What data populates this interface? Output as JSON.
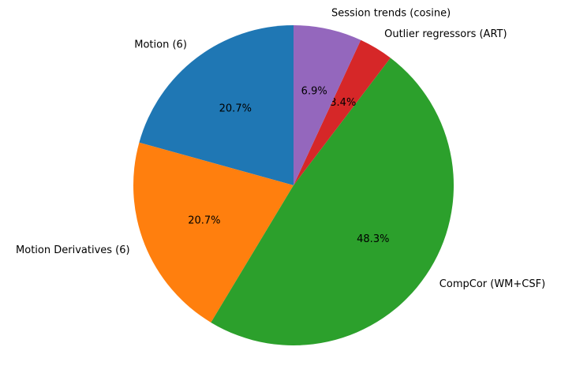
{
  "chart_data": {
    "type": "pie",
    "title": "",
    "start_angle_deg": 90,
    "direction": "counterclockwise",
    "legend": "none",
    "categories": [
      "Motion (6)",
      "Motion Derivatives (6)",
      "CompCor (WM+CSF)",
      "Outlier regressors (ART)",
      "Session trends (cosine)"
    ],
    "values": [
      6,
      6,
      14,
      1,
      2
    ],
    "percent_labels": [
      "20.7%",
      "20.7%",
      "48.3%",
      "3.4%",
      "6.9%"
    ],
    "colors": [
      "#1f77b4",
      "#ff7f0e",
      "#2ca02c",
      "#d62728",
      "#9467bd"
    ]
  }
}
